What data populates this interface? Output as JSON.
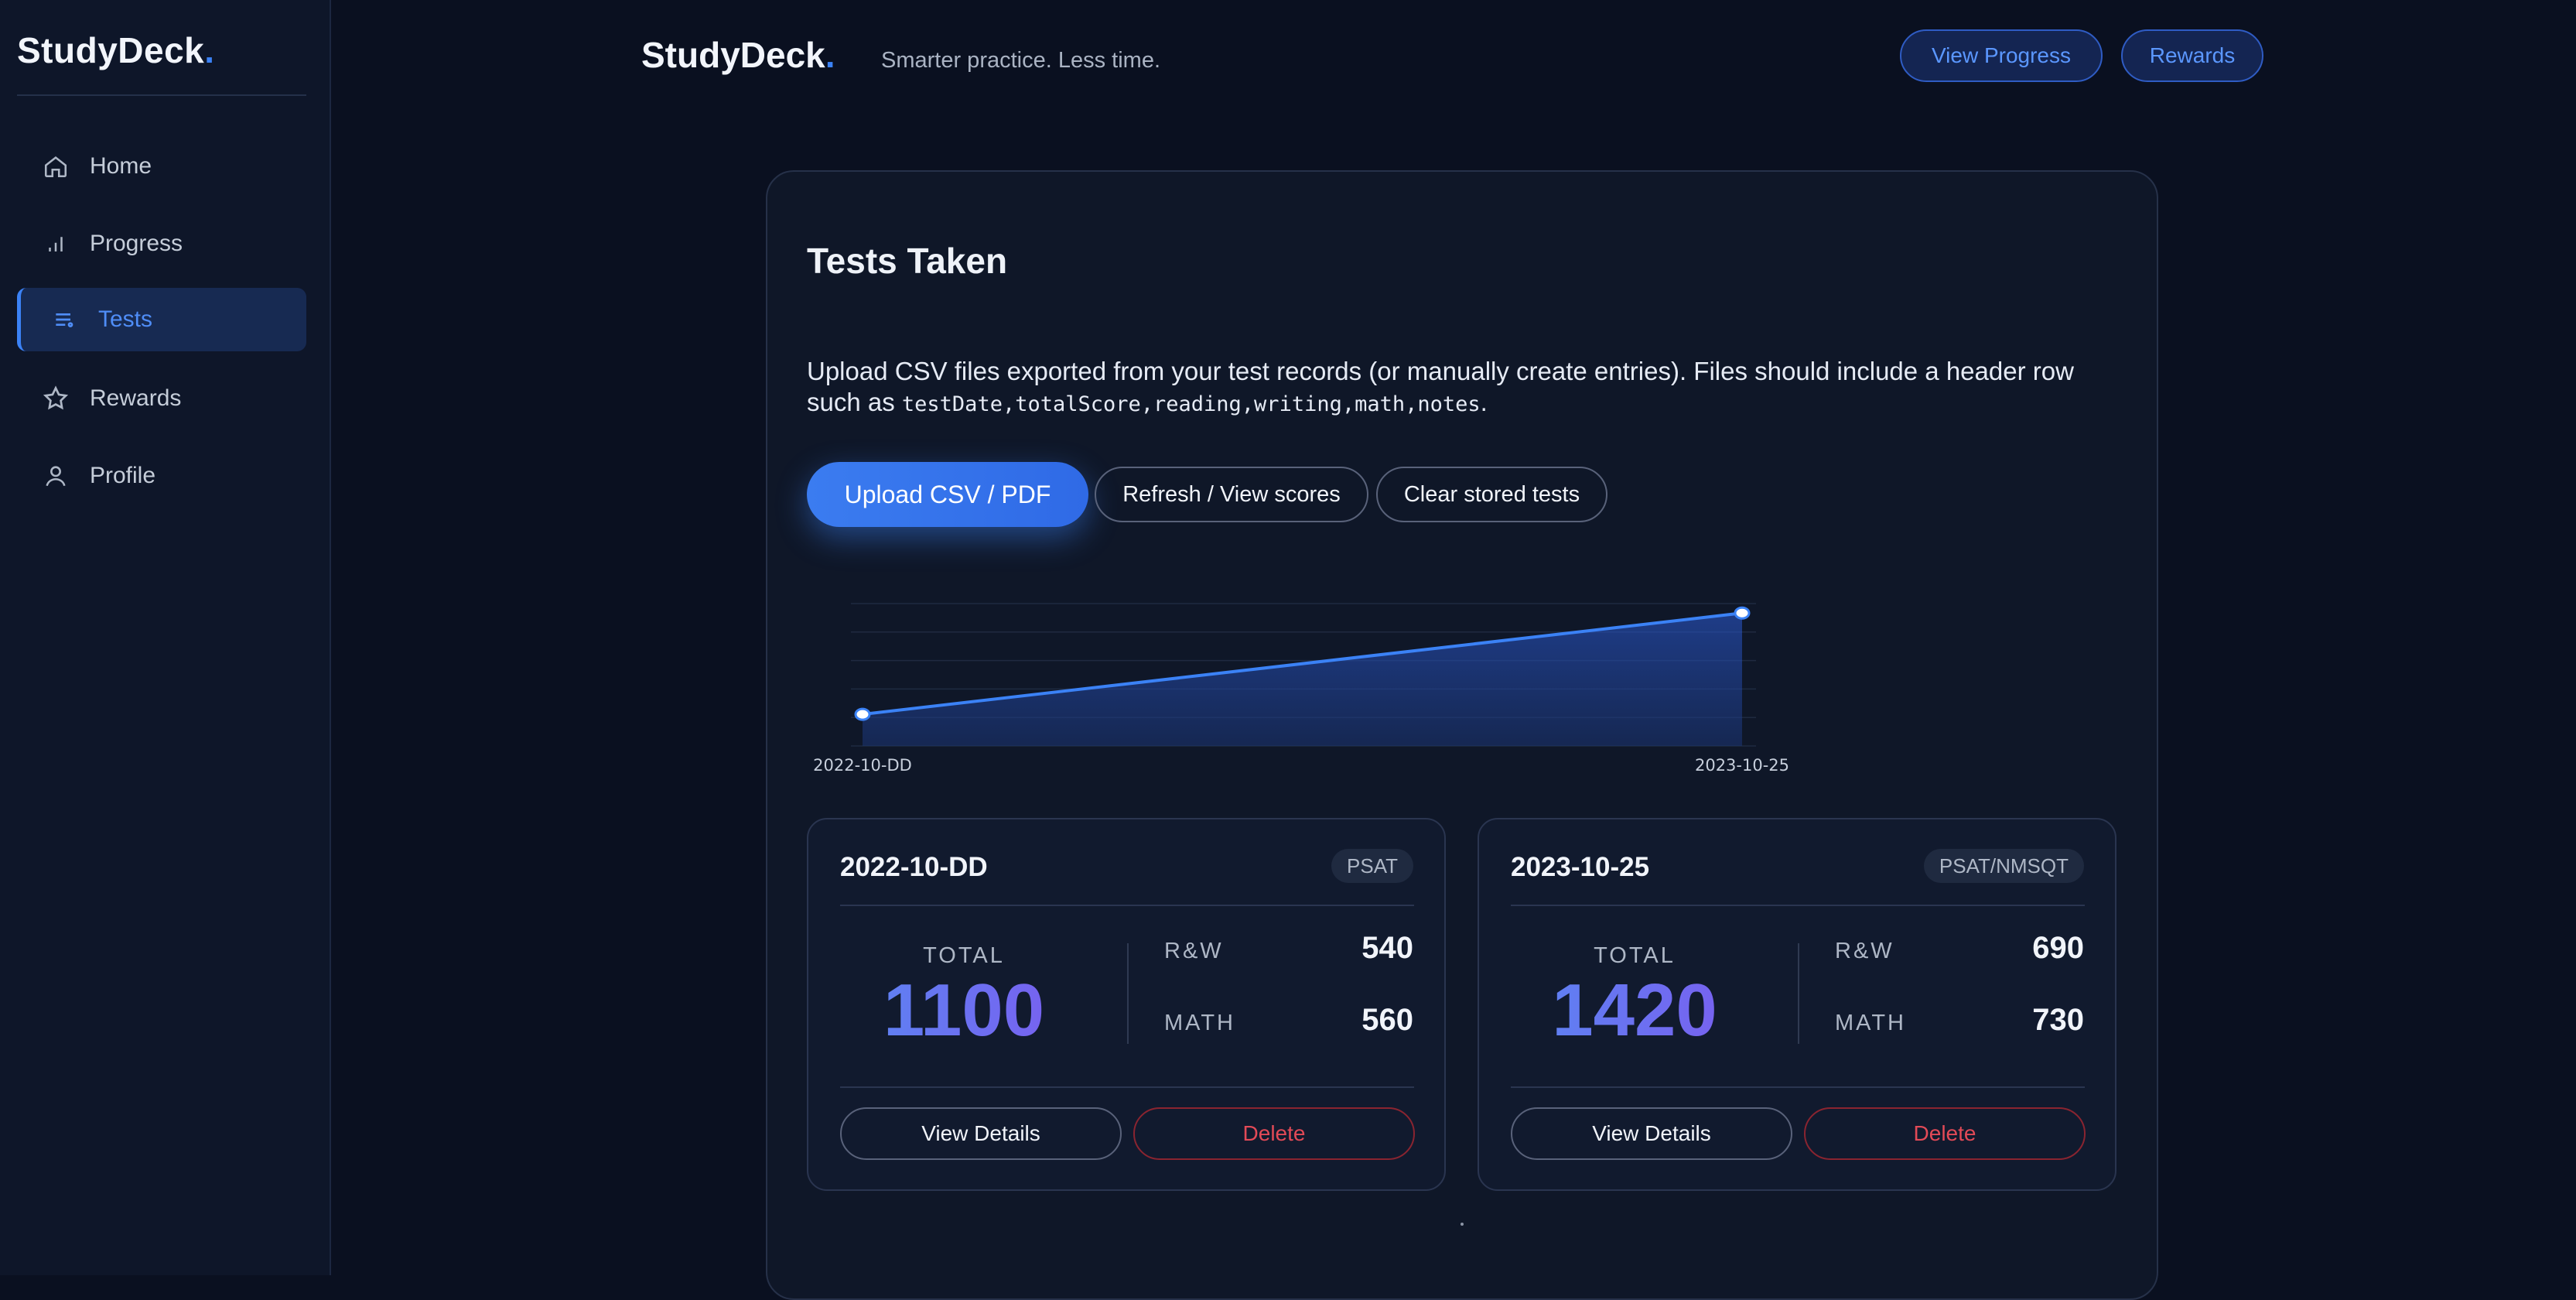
{
  "sidebar": {
    "logo": "StudyDeck",
    "logo_dot": ".",
    "items": [
      {
        "label": "Home",
        "icon": "home-icon"
      },
      {
        "label": "Progress",
        "icon": "bar-chart-icon"
      },
      {
        "label": "Tests",
        "icon": "list-icon",
        "active": true
      },
      {
        "label": "Rewards",
        "icon": "star-icon"
      },
      {
        "label": "Profile",
        "icon": "user-icon"
      }
    ]
  },
  "header": {
    "logo": "StudyDeck",
    "logo_dot": ".",
    "tagline": "Smarter practice. Less time.",
    "view_progress": "View Progress",
    "rewards": "Rewards"
  },
  "main": {
    "title": "Tests Taken",
    "description_prefix": "Upload CSV files exported from your test records (or manually create entries). Files should include a header row such as",
    "description_code": "testDate,totalScore,reading,writing,math,notes",
    "description_suffix": ".",
    "upload_button": "Upload CSV / PDF",
    "refresh_button": "Refresh / View scores",
    "clear_button": "Clear stored tests"
  },
  "chart_data": {
    "type": "area",
    "x": [
      "2022-10-DD",
      "2023-10-25"
    ],
    "series": [
      {
        "values": [
          1100,
          1420
        ]
      }
    ],
    "tick_labels": [
      "2022-10-DD",
      "2023-10-25"
    ],
    "grid": true
  },
  "tests": [
    {
      "date": "2022-10-DD",
      "type": "PSAT",
      "total_label": "TOTAL",
      "total": "1100",
      "rw_label": "R&W",
      "rw": "540",
      "math_label": "MATH",
      "math": "560",
      "view_label": "View Details",
      "delete_label": "Delete"
    },
    {
      "date": "2023-10-25",
      "type": "PSAT/NMSQT",
      "total_label": "TOTAL",
      "total": "1420",
      "rw_label": "R&W",
      "rw": "690",
      "math_label": "MATH",
      "math": "730",
      "view_label": "View Details",
      "delete_label": "Delete"
    }
  ],
  "colors": {
    "accent": "#3b82f6",
    "danger": "#e24a57",
    "background": "#0a1020"
  }
}
